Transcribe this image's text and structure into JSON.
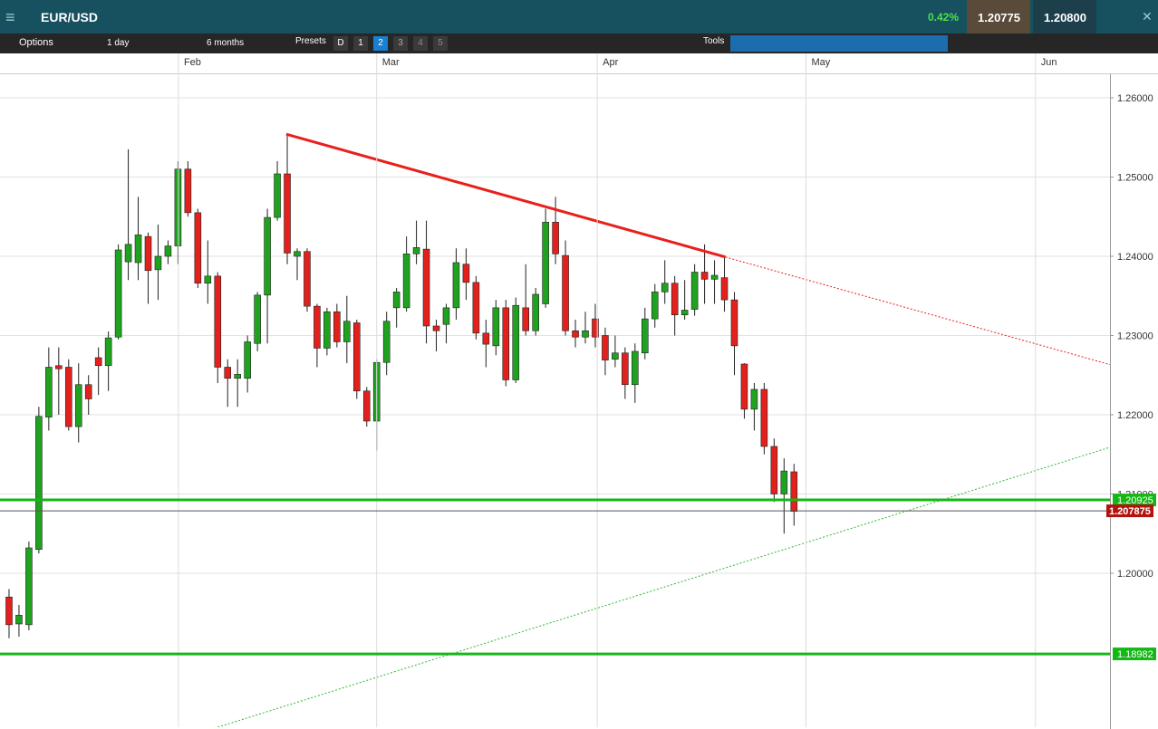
{
  "toolbar": {
    "symbol": "EUR/USD",
    "change": "0.42%",
    "bid": "1.20775",
    "ask": "1.20800",
    "options": "Options",
    "interval": "1 day",
    "range": "6 months",
    "presets": "Presets",
    "preset_buttons": [
      "D",
      "1",
      "2",
      "3",
      "4",
      "5"
    ],
    "tools": "Tools"
  },
  "chart_data": {
    "type": "candlestick",
    "up_color": "#1fa31f",
    "down_color": "#e3201b",
    "x": [
      0,
      1,
      2,
      3,
      4,
      5,
      6,
      7,
      8,
      9,
      10,
      11,
      12,
      13,
      14,
      15,
      16,
      17,
      18,
      19,
      20,
      21,
      22,
      23,
      24,
      25,
      26,
      27,
      28,
      29,
      30,
      31,
      32,
      33,
      34,
      35,
      36,
      37,
      38,
      39,
      40,
      41,
      42,
      43,
      44,
      45,
      46,
      47,
      48,
      49,
      50,
      51,
      52,
      53,
      54,
      55,
      56,
      57,
      58,
      59,
      60,
      61,
      62,
      63,
      64,
      65,
      66,
      67,
      68,
      69,
      70,
      71,
      72,
      73,
      74,
      75,
      76,
      77,
      78,
      79
    ],
    "open": [
      1.197,
      1.1936,
      1.1935,
      1.203,
      1.2197,
      1.2262,
      1.226,
      1.2185,
      1.2238,
      1.2272,
      1.2262,
      1.2298,
      1.2393,
      1.2392,
      1.2425,
      1.2383,
      1.24,
      1.2413,
      1.251,
      1.2455,
      1.2366,
      1.2375,
      1.226,
      1.2246,
      1.2246,
      1.229,
      1.2351,
      1.2449,
      1.2504,
      1.24,
      1.2406,
      1.2337,
      1.2284,
      1.233,
      1.2292,
      1.2316,
      1.223,
      1.2192,
      1.2266,
      1.2335,
      1.2335,
      1.2403,
      1.2409,
      1.2312,
      1.2314,
      1.2335,
      1.239,
      1.2367,
      1.2303,
      1.2287,
      1.2335,
      1.2244,
      1.2335,
      1.2306,
      1.234,
      1.2443,
      1.2401,
      1.2306,
      1.2298,
      1.2321,
      1.23,
      1.227,
      1.2278,
      1.2238,
      1.2278,
      1.2321,
      1.2355,
      1.2366,
      1.2326,
      1.2333,
      1.238,
      1.2371,
      1.2373,
      1.2345,
      1.2264,
      1.2207,
      1.2232,
      1.216,
      1.21,
      1.2128
    ],
    "high": [
      1.198,
      1.196,
      1.204,
      1.221,
      1.2285,
      1.2285,
      1.227,
      1.2265,
      1.225,
      1.2285,
      1.2305,
      1.2415,
      1.2535,
      1.2475,
      1.243,
      1.244,
      1.242,
      1.252,
      1.252,
      1.246,
      1.242,
      1.238,
      1.227,
      1.227,
      1.23,
      1.2355,
      1.246,
      1.252,
      1.2555,
      1.241,
      1.241,
      1.234,
      1.2335,
      1.234,
      1.235,
      1.232,
      1.2235,
      1.227,
      1.233,
      1.236,
      1.2425,
      1.2445,
      1.2445,
      1.232,
      1.234,
      1.241,
      1.241,
      1.2375,
      1.232,
      1.2345,
      1.2345,
      1.2348,
      1.239,
      1.236,
      1.246,
      1.2475,
      1.242,
      1.232,
      1.233,
      1.234,
      1.231,
      1.23,
      1.2285,
      1.229,
      1.2335,
      1.2365,
      1.2395,
      1.2375,
      1.237,
      1.239,
      1.2415,
      1.2395,
      1.24,
      1.2355,
      1.2265,
      1.224,
      1.224,
      1.217,
      1.2145,
      1.2138
    ],
    "low": [
      1.1918,
      1.192,
      1.1928,
      1.2025,
      1.218,
      1.22,
      1.218,
      1.2165,
      1.22,
      1.2225,
      1.223,
      1.2295,
      1.237,
      1.237,
      1.234,
      1.2345,
      1.239,
      1.239,
      1.245,
      1.236,
      1.234,
      1.224,
      1.221,
      1.221,
      1.2228,
      1.228,
      1.229,
      1.2445,
      1.239,
      1.237,
      1.233,
      1.226,
      1.2275,
      1.2285,
      1.2265,
      1.222,
      1.2185,
      1.2155,
      1.225,
      1.231,
      1.233,
      1.239,
      1.229,
      1.228,
      1.229,
      1.232,
      1.2345,
      1.2295,
      1.226,
      1.2275,
      1.2236,
      1.224,
      1.23,
      1.23,
      1.2335,
      1.239,
      1.23,
      1.2285,
      1.229,
      1.2285,
      1.225,
      1.226,
      1.222,
      1.2215,
      1.227,
      1.231,
      1.234,
      1.23,
      1.232,
      1.2325,
      1.234,
      1.234,
      1.233,
      1.225,
      1.2195,
      1.218,
      1.215,
      1.209,
      1.205,
      1.206
    ],
    "close": [
      1.1935,
      1.1947,
      1.2032,
      1.2198,
      1.226,
      1.2258,
      1.2185,
      1.2238,
      1.222,
      1.2262,
      1.2297,
      1.2408,
      1.2415,
      1.2427,
      1.2382,
      1.24,
      1.2413,
      1.251,
      1.2455,
      1.2366,
      1.2375,
      1.226,
      1.2246,
      1.2251,
      1.2292,
      1.2351,
      1.2449,
      1.2504,
      1.2404,
      1.2406,
      1.2337,
      1.2284,
      1.233,
      1.2292,
      1.2318,
      1.223,
      1.2192,
      1.2266,
      1.2318,
      1.2355,
      1.2403,
      1.2411,
      1.2312,
      1.2306,
      1.2335,
      1.2392,
      1.2367,
      1.2303,
      1.2289,
      1.2335,
      1.2244,
      1.2338,
      1.2306,
      1.2352,
      1.2443,
      1.2403,
      1.2306,
      1.2298,
      1.2306,
      1.2298,
      1.2269,
      1.2278,
      1.2238,
      1.228,
      1.2321,
      1.2355,
      1.2366,
      1.2326,
      1.2332,
      1.238,
      1.2371,
      1.2376,
      1.2345,
      1.2287,
      1.2207,
      1.2232,
      1.216,
      1.21,
      1.2129,
      1.2078
    ],
    "xlim": [
      -0.91,
      110.8
    ],
    "xticks": [
      {
        "value": 17.05,
        "label": "Feb"
      },
      {
        "value": 37.0,
        "label": "Mar"
      },
      {
        "value": 59.2,
        "label": "Apr"
      },
      {
        "value": 80.2,
        "label": "May"
      },
      {
        "value": 103.3,
        "label": "Jun"
      }
    ],
    "ylim": [
      1.18057,
      1.26297
    ],
    "yticks": [
      {
        "value": 1.2,
        "label": "1.20000"
      },
      {
        "value": 1.21,
        "label": "1.21000"
      },
      {
        "value": 1.22,
        "label": "1.22000"
      },
      {
        "value": 1.23,
        "label": "1.23000"
      },
      {
        "value": 1.24,
        "label": "1.24000"
      },
      {
        "value": 1.25,
        "label": "1.25000"
      },
      {
        "value": 1.26,
        "label": "1.26000"
      }
    ],
    "grid": true,
    "levels": [
      {
        "value": 1.20925,
        "color": "#14b814"
      },
      {
        "value": 1.18982,
        "color": "#14b814"
      }
    ],
    "last_price": {
      "value": 1.207875,
      "color": "#b3130f"
    },
    "trendlines": [
      {
        "color": "#e8201c",
        "points": [
          [
            27.9,
            1.2554
          ],
          [
            72.1,
            1.2399
          ]
        ]
      },
      {
        "color": "#2fb82f",
        "points": [
          [
            21.0,
            1.18057
          ],
          [
            110.8,
            1.2159
          ]
        ]
      }
    ]
  }
}
